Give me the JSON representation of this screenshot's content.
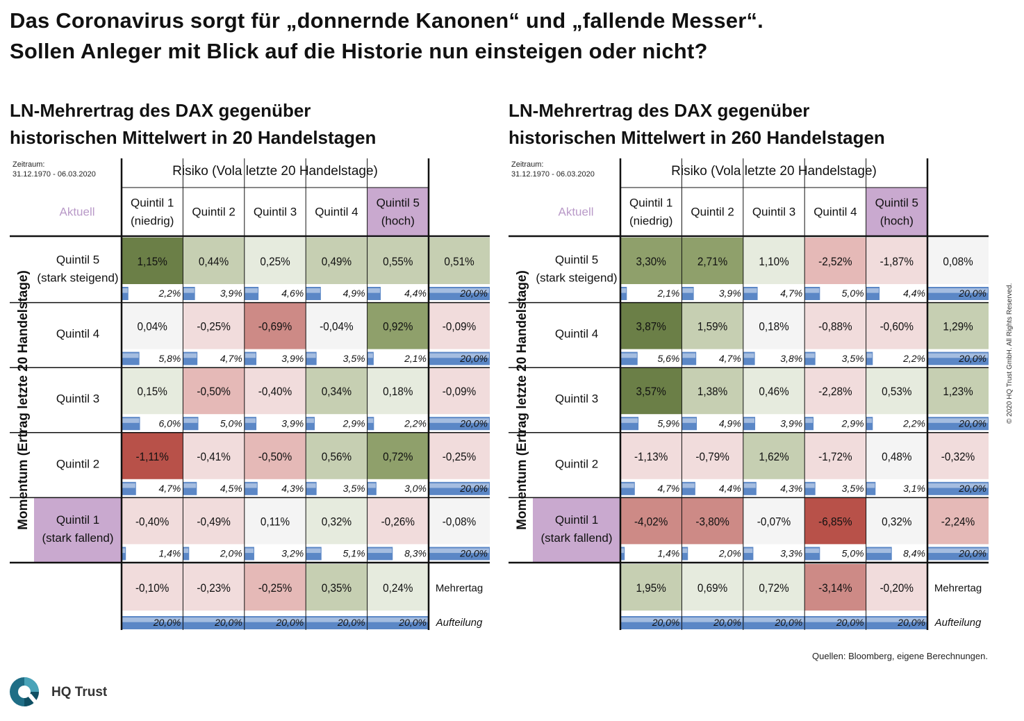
{
  "title": {
    "line1": "Das Coronavirus sorgt für „donnernde Kanonen“ und „fallende Messer“.",
    "line2": "Sollen Anleger mit Blick auf die Historie nun einsteigen oder nicht?"
  },
  "labels": {
    "period_label": "Zeitraum:",
    "period": "31.12.1970 - 06.03.2020",
    "risk_header": "Risiko (Vola letzte 20 Handelstage)",
    "aktuell": "Aktuell",
    "y_axis": "Momentum (Ertrag letzte 20 Handelstage)",
    "mehrertrag": "Mehrertag",
    "aufteilung": "Aufteilung",
    "col_headers": [
      [
        "Quintil 1",
        "(niedrig)"
      ],
      [
        "Quintil 2"
      ],
      [
        "Quintil 3"
      ],
      [
        "Quintil 4"
      ],
      [
        "Quintil 5",
        "(hoch)"
      ]
    ],
    "row_headers": [
      [
        "Quintil 5",
        "(stark steigend)"
      ],
      [
        "Quintil 4"
      ],
      [
        "Quintil 3"
      ],
      [
        "Quintil 2"
      ],
      [
        "Quintil 1",
        "(stark fallend)"
      ]
    ]
  },
  "colors": {
    "dark_green": "#6b7f47",
    "green": "#8fa06b",
    "light_green": "#c6cfb2",
    "pale_green": "#e6ebde",
    "neutral": "#f4f4f4",
    "pale_red": "#f1dcdc",
    "light_red": "#e5b9b7",
    "red": "#cd8a86",
    "dark_red": "#b85149",
    "highlight": "#c9a9cf",
    "aktuell_text": "#b99ac8",
    "bar_blue": "#5b87c6"
  },
  "chart_data": [
    {
      "type": "heatmap",
      "title": "LN-Mehrertrag des DAX gegenüber historischen Mittelwert in 20 Handelstagen",
      "title_lines": [
        "LN-Mehrertrag des DAX gegenüber",
        "historischen Mittelwert in 20 Handelstagen"
      ],
      "xlabel": "Risiko (Vola letzte 20 Handelstage)",
      "ylabel": "Momentum (Ertrag letzte 20 Handelstage)",
      "columns": [
        "Quintil 1 (niedrig)",
        "Quintil 2",
        "Quintil 3",
        "Quintil 4",
        "Quintil 5 (hoch)"
      ],
      "rows": [
        "Quintil 5 (stark steigend)",
        "Quintil 4",
        "Quintil 3",
        "Quintil 2",
        "Quintil 1 (stark fallend)"
      ],
      "values": [
        [
          "1,15%",
          "0,44%",
          "0,25%",
          "0,49%",
          "0,55%"
        ],
        [
          "0,04%",
          "-0,25%",
          "-0,69%",
          "-0,04%",
          "0,92%"
        ],
        [
          "0,15%",
          "-0,50%",
          "-0,40%",
          "0,34%",
          "0,18%"
        ],
        [
          "-1,11%",
          "-0,41%",
          "-0,50%",
          "0,56%",
          "0,72%"
        ],
        [
          "-0,40%",
          "-0,49%",
          "0,11%",
          "0,32%",
          "-0,26%"
        ]
      ],
      "shares": [
        [
          "2,2%",
          "3,9%",
          "4,6%",
          "4,9%",
          "4,4%"
        ],
        [
          "5,8%",
          "4,7%",
          "3,9%",
          "3,5%",
          "2,1%"
        ],
        [
          "6,0%",
          "5,0%",
          "3,9%",
          "2,9%",
          "2,2%"
        ],
        [
          "4,7%",
          "4,5%",
          "4,3%",
          "3,5%",
          "3,0%"
        ],
        [
          "1,4%",
          "2,0%",
          "3,2%",
          "5,1%",
          "8,3%"
        ]
      ],
      "row_totals": [
        "0,51%",
        "-0,09%",
        "-0,09%",
        "-0,25%",
        "-0,08%"
      ],
      "row_total_shares": [
        "20,0%",
        "20,0%",
        "20,0%",
        "20,0%",
        "20,0%"
      ],
      "col_totals": [
        "-0,10%",
        "-0,23%",
        "-0,25%",
        "0,35%",
        "0,24%"
      ],
      "col_total_shares": [
        "20,0%",
        "20,0%",
        "20,0%",
        "20,0%",
        "20,0%"
      ],
      "cell_colors": [
        [
          "dark_green",
          "light_green",
          "pale_green",
          "light_green",
          "light_green"
        ],
        [
          "neutral",
          "pale_red",
          "red",
          "neutral",
          "green"
        ],
        [
          "pale_green",
          "light_red",
          "pale_red",
          "light_green",
          "pale_green"
        ],
        [
          "dark_red",
          "pale_red",
          "light_red",
          "light_green",
          "green"
        ],
        [
          "pale_red",
          "pale_red",
          "neutral",
          "pale_green",
          "pale_red"
        ]
      ],
      "row_total_colors": [
        "light_green",
        "pale_red",
        "pale_red",
        "pale_red",
        "neutral"
      ],
      "col_total_colors": [
        "pale_red",
        "pale_red",
        "light_red",
        "light_green",
        "pale_green"
      ]
    },
    {
      "type": "heatmap",
      "title": "LN-Mehrertrag des DAX gegenüber historischen Mittelwert in 260 Handelstagen",
      "title_lines": [
        "LN-Mehrertrag des DAX gegenüber",
        "historischen Mittelwert in 260 Handelstagen"
      ],
      "xlabel": "Risiko (Vola letzte 20 Handelstage)",
      "ylabel": "Momentum (Ertrag letzte 20 Handelstage)",
      "columns": [
        "Quintil 1 (niedrig)",
        "Quintil 2",
        "Quintil 3",
        "Quintil 4",
        "Quintil 5 (hoch)"
      ],
      "rows": [
        "Quintil 5 (stark steigend)",
        "Quintil 4",
        "Quintil 3",
        "Quintil 2",
        "Quintil 1 (stark fallend)"
      ],
      "values": [
        [
          "3,30%",
          "2,71%",
          "1,10%",
          "-2,52%",
          "-1,87%"
        ],
        [
          "3,87%",
          "1,59%",
          "0,18%",
          "-0,88%",
          "-0,60%"
        ],
        [
          "3,57%",
          "1,38%",
          "0,46%",
          "-2,28%",
          "0,53%"
        ],
        [
          "-1,13%",
          "-0,79%",
          "1,62%",
          "-1,72%",
          "0,48%"
        ],
        [
          "-4,02%",
          "-3,80%",
          "-0,07%",
          "-6,85%",
          "0,32%"
        ]
      ],
      "shares": [
        [
          "2,1%",
          "3,9%",
          "4,7%",
          "5,0%",
          "4,4%"
        ],
        [
          "5,6%",
          "4,7%",
          "3,8%",
          "3,5%",
          "2,2%"
        ],
        [
          "5,9%",
          "4,9%",
          "3,9%",
          "2,9%",
          "2,2%"
        ],
        [
          "4,7%",
          "4,4%",
          "4,3%",
          "3,5%",
          "3,1%"
        ],
        [
          "1,4%",
          "2,0%",
          "3,3%",
          "5,0%",
          "8,4%"
        ]
      ],
      "row_totals": [
        "0,08%",
        "1,29%",
        "1,23%",
        "-0,32%",
        "-2,24%"
      ],
      "row_total_shares": [
        "20,0%",
        "20,0%",
        "20,0%",
        "20,0%",
        "20,0%"
      ],
      "col_totals": [
        "1,95%",
        "0,69%",
        "0,72%",
        "-3,14%",
        "-0,20%"
      ],
      "col_total_shares": [
        "20,0%",
        "20,0%",
        "20,0%",
        "20,0%",
        "20,0%"
      ],
      "cell_colors": [
        [
          "green",
          "green",
          "pale_green",
          "light_red",
          "pale_red"
        ],
        [
          "dark_green",
          "light_green",
          "neutral",
          "pale_red",
          "pale_red"
        ],
        [
          "dark_green",
          "light_green",
          "pale_green",
          "pale_red",
          "pale_green"
        ],
        [
          "pale_red",
          "pale_red",
          "light_green",
          "pale_red",
          "neutral"
        ],
        [
          "red",
          "red",
          "neutral",
          "dark_red",
          "neutral"
        ]
      ],
      "row_total_colors": [
        "neutral",
        "light_green",
        "light_green",
        "pale_red",
        "light_red"
      ],
      "col_total_colors": [
        "light_green",
        "pale_green",
        "pale_green",
        "red",
        "pale_red"
      ]
    }
  ],
  "footer": {
    "copyright": "© 2020 HQ Trust GmbH. All Rights Reserved.",
    "sources": "Quellen: Bloomberg, eigene Berechnungen.",
    "logo_text": "HQ Trust"
  }
}
